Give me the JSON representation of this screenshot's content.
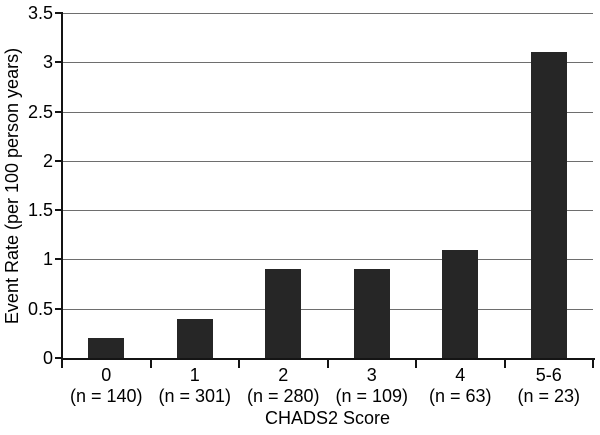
{
  "chart_data": {
    "type": "bar",
    "title": "",
    "xlabel": "CHADS2 Score",
    "ylabel": "Event Rate (per 100 person years)",
    "categories": [
      "0",
      "1",
      "2",
      "3",
      "4",
      "5-6"
    ],
    "category_sublabels": [
      "(n = 140)",
      "(n = 301)",
      "(n = 280)",
      "(n = 109)",
      "(n = 63)",
      "(n = 23)"
    ],
    "values": [
      0.2,
      0.4,
      0.9,
      0.9,
      1.1,
      3.1
    ],
    "ylim": [
      0,
      3.5
    ],
    "ytick_step": 0.5,
    "ytick_labels": [
      "0",
      "0.5",
      "1",
      "1.5",
      "2",
      "2.5",
      "3",
      "3.5"
    ],
    "grid": true,
    "legend": "none",
    "colors": {
      "bar": "#262626",
      "gridline": "#6e6e6e",
      "axis": "#141414",
      "text": "#000000",
      "background": "#ffffff"
    }
  }
}
